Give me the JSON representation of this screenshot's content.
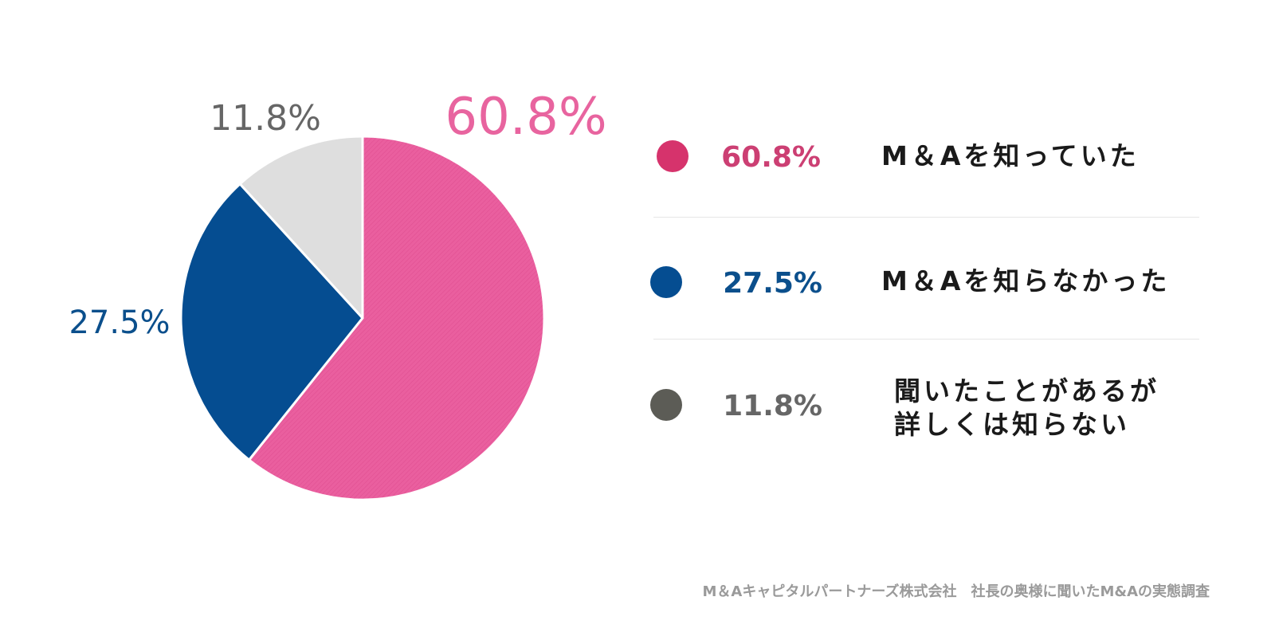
{
  "chart_data": {
    "type": "pie",
    "title": "",
    "categories": [
      "M＆Aを知っていた",
      "M＆Aを知らなかった",
      "聞いたことがあるが詳しくは知らない"
    ],
    "values": [
      60.8,
      27.5,
      11.8
    ],
    "value_labels": [
      "60.8%",
      "27.5%",
      "11.8%"
    ],
    "slice_colors": [
      "#ea5f9f",
      "#054d91",
      "#dedede"
    ],
    "label_colors": [
      "#e8649f",
      "#0b4f8c",
      "#666666"
    ],
    "legend_position": "right"
  },
  "legend": {
    "items": [
      {
        "value": "60.8%",
        "lines": [
          "M＆Aを知っていた"
        ],
        "dot_color": "#d6336c",
        "value_color": "#cc3f73"
      },
      {
        "value": "27.5%",
        "lines": [
          "M＆Aを知らなかった"
        ],
        "dot_color": "#054d91",
        "value_color": "#0b4f8c"
      },
      {
        "value": "11.8%",
        "lines": [
          "聞いたことがあるが",
          "詳しくは知らない"
        ],
        "dot_color": "#5c5c56",
        "value_color": "#666666"
      }
    ]
  },
  "source": "M＆Aキャピタルパートナーズ株式会社　社長の奥様に聞いたM&Aの実態調査"
}
